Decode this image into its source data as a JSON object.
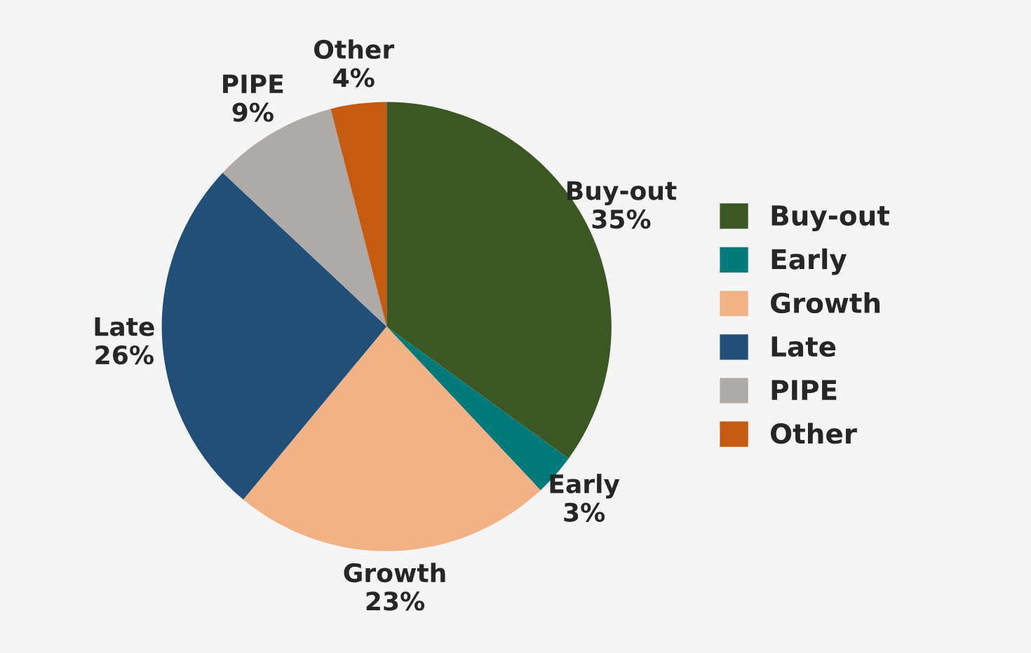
{
  "chart_data": {
    "type": "pie",
    "categories": [
      "Buy-out",
      "Early",
      "Growth",
      "Late",
      "PIPE",
      "Other"
    ],
    "values": [
      35,
      3,
      23,
      26,
      9,
      4
    ],
    "value_labels": [
      "35%",
      "3%",
      "23%",
      "26%",
      "9%",
      "4%"
    ],
    "colors": [
      "#3a5724",
      "#007a78",
      "#f3b186",
      "#214f78",
      "#aeaaa8",
      "#c55a11"
    ],
    "legend": "right"
  }
}
